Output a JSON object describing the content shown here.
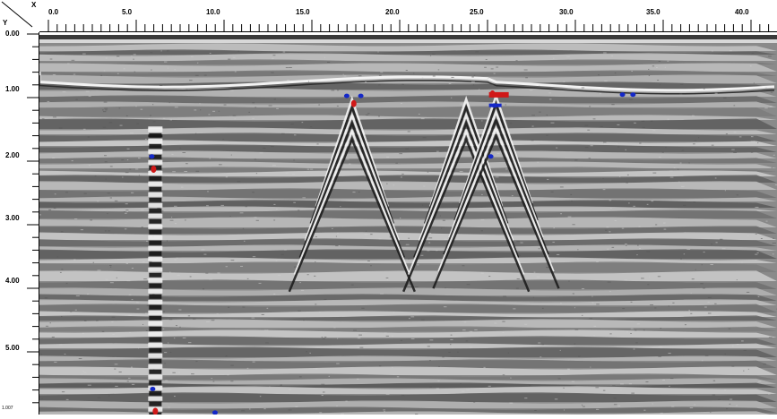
{
  "axes": {
    "x_corner_label": "X",
    "y_corner_label": "Y",
    "x_ticks": [
      "0.0",
      "5.0",
      "10.0",
      "15.0",
      "20.0",
      "25.0",
      "30.0",
      "35.0",
      "40.0"
    ],
    "y_ticks": [
      "0.00",
      "1.00",
      "2.00",
      "3.00",
      "4.00",
      "5.00"
    ],
    "y_unit": "1.007"
  },
  "profile": {
    "x_range": [
      0,
      42
    ],
    "y_range": [
      0,
      6
    ],
    "hyperbolas": [
      {
        "x": 6.6,
        "y": 1.5,
        "strong": true
      },
      {
        "x": 17.8,
        "y": 1.05,
        "strong": false
      },
      {
        "x": 24.3,
        "y": 1.05,
        "strong": false
      },
      {
        "x": 26.0,
        "y": 1.0,
        "strong": false
      }
    ],
    "red_markers": [
      {
        "x": 6.5,
        "y": 2.15
      },
      {
        "x": 6.6,
        "y": 5.95
      },
      {
        "x": 25.8,
        "y": 0.97
      },
      {
        "x": 17.9,
        "y": 1.12
      }
    ],
    "blue_markers": [
      {
        "x": 6.4,
        "y": 1.95
      },
      {
        "x": 6.45,
        "y": 5.6
      },
      {
        "x": 25.9,
        "y": 1.15
      },
      {
        "x": 25.7,
        "y": 1.95
      },
      {
        "x": 17.5,
        "y": 1.0
      },
      {
        "x": 18.3,
        "y": 1.0
      },
      {
        "x": 33.2,
        "y": 0.98
      },
      {
        "x": 33.8,
        "y": 0.98
      },
      {
        "x": 10.0,
        "y": 5.97
      }
    ],
    "colors": {
      "background": "#8a8a8a",
      "light_band": "#c4c4c4",
      "dark_band": "#4a4a4a",
      "marker_red": "#d01818",
      "marker_blue": "#1428c8"
    }
  }
}
